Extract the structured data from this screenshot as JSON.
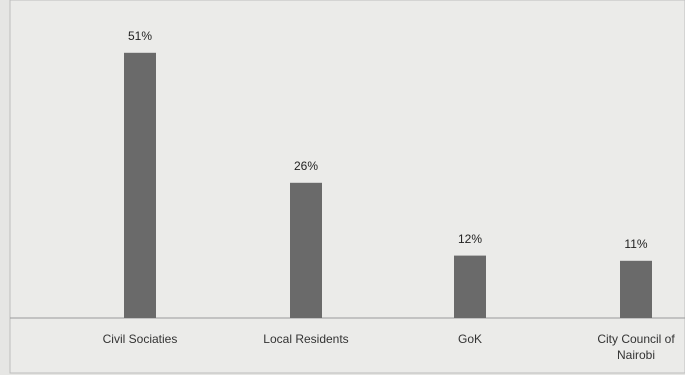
{
  "chart_data": {
    "type": "bar",
    "categories": [
      "Civil Sociaties",
      "Local Residents",
      "GoK",
      "City Council of Nairobi"
    ],
    "values": [
      51,
      26,
      12,
      11
    ],
    "value_labels": [
      "51%",
      "26%",
      "12%",
      "11%"
    ],
    "color": "#6a6a6a",
    "ylim": [
      0,
      55
    ]
  }
}
